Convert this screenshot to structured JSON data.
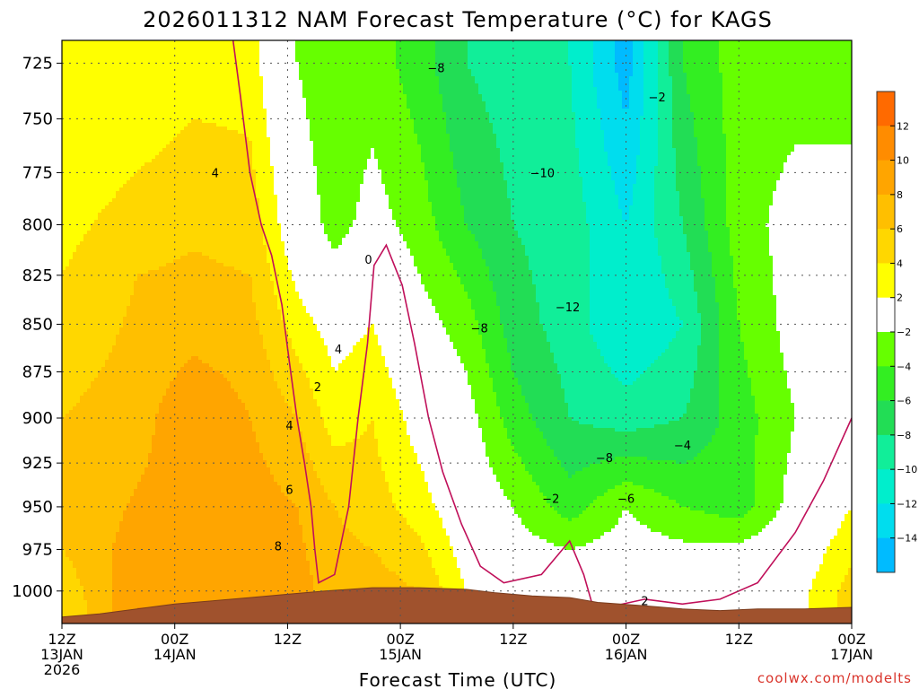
{
  "chart_data": {
    "type": "heatmap",
    "title": "2026011312 NAM Forecast Temperature (°C) for KAGS",
    "xlabel": "Forecast Time (UTC)",
    "credit": "coolwx.com/modelts",
    "y_axis": {
      "ticks": [
        725,
        750,
        775,
        800,
        825,
        850,
        875,
        900,
        925,
        950,
        975,
        1000
      ],
      "range": [
        1020,
        715
      ],
      "grid": true
    },
    "x_axis": {
      "range_hours": [
        0,
        84
      ],
      "grid": true,
      "ticks": [
        {
          "hour": 0,
          "line1": "12Z",
          "line2": "13JAN",
          "line3": "2026"
        },
        {
          "hour": 12,
          "line1": "00Z",
          "line2": "14JAN"
        },
        {
          "hour": 24,
          "line1": "12Z",
          "line2": ""
        },
        {
          "hour": 36,
          "line1": "00Z",
          "line2": "15JAN"
        },
        {
          "hour": 48,
          "line1": "12Z",
          "line2": ""
        },
        {
          "hour": 60,
          "line1": "00Z",
          "line2": "16JAN"
        },
        {
          "hour": 72,
          "line1": "12Z",
          "line2": ""
        },
        {
          "hour": 84,
          "line1": "00Z",
          "line2": "17JAN"
        }
      ]
    },
    "colorbar": {
      "ticks": [
        "12",
        "10",
        "8",
        "6",
        "4",
        "2",
        "−2",
        "−4",
        "−6",
        "−8",
        "−10",
        "−12",
        "−14"
      ],
      "bins": [
        {
          "min": 12,
          "max": 14,
          "color": "#ff6a00"
        },
        {
          "min": 10,
          "max": 12,
          "color": "#ff8c00"
        },
        {
          "min": 8,
          "max": 10,
          "color": "#ffa500"
        },
        {
          "min": 6,
          "max": 8,
          "color": "#ffbf00"
        },
        {
          "min": 4,
          "max": 6,
          "color": "#ffd700"
        },
        {
          "min": 2,
          "max": 4,
          "color": "#ffff00"
        },
        {
          "min": -2,
          "max": 2,
          "color": "#ffffff"
        },
        {
          "min": -4,
          "max": -2,
          "color": "#66ff00"
        },
        {
          "min": -6,
          "max": -4,
          "color": "#33ee22"
        },
        {
          "min": -8,
          "max": -6,
          "color": "#22dd55"
        },
        {
          "min": -10,
          "max": -8,
          "color": "#11ee99"
        },
        {
          "min": -12,
          "max": -10,
          "color": "#00eecc"
        },
        {
          "min": -14,
          "max": -12,
          "color": "#00ddee"
        },
        {
          "min": -16,
          "max": -14,
          "color": "#00bbff"
        }
      ]
    },
    "temperature_field": [
      {
        "hour": 0,
        "profile": [
          [
            1010,
            4
          ],
          [
            975,
            6
          ],
          [
            900,
            6
          ],
          [
            825,
            4
          ],
          [
            750,
            2
          ]
        ]
      },
      {
        "hour": 8,
        "profile": [
          [
            1010,
            10
          ],
          [
            975,
            9
          ],
          [
            900,
            7
          ],
          [
            825,
            6
          ],
          [
            750,
            3
          ]
        ]
      },
      {
        "hour": 14,
        "profile": [
          [
            1010,
            10
          ],
          [
            950,
            9
          ],
          [
            900,
            10
          ],
          [
            850,
            7
          ],
          [
            775,
            5
          ],
          [
            725,
            3
          ]
        ]
      },
      {
        "hour": 20,
        "profile": [
          [
            1005,
            10
          ],
          [
            950,
            9
          ],
          [
            900,
            8
          ],
          [
            825,
            6
          ],
          [
            725,
            3
          ]
        ]
      },
      {
        "hour": 25,
        "profile": [
          [
            1005,
            9
          ],
          [
            950,
            8
          ],
          [
            900,
            6
          ],
          [
            850,
            3
          ],
          [
            800,
            0
          ],
          [
            725,
            -2
          ]
        ]
      },
      {
        "hour": 29,
        "profile": [
          [
            1000,
            7
          ],
          [
            950,
            6
          ],
          [
            900,
            3
          ],
          [
            850,
            1
          ],
          [
            800,
            -3
          ],
          [
            725,
            -4
          ]
        ]
      },
      {
        "hour": 33,
        "profile": [
          [
            1000,
            7
          ],
          [
            950,
            5
          ],
          [
            900,
            4
          ],
          [
            850,
            2
          ],
          [
            800,
            -1
          ],
          [
            725,
            -3
          ]
        ]
      },
      {
        "hour": 38,
        "profile": [
          [
            1000,
            6
          ],
          [
            950,
            3
          ],
          [
            900,
            1
          ],
          [
            850,
            -1
          ],
          [
            800,
            -3
          ],
          [
            725,
            -5
          ]
        ]
      },
      {
        "hour": 43,
        "profile": [
          [
            1000,
            2
          ],
          [
            950,
            0
          ],
          [
            900,
            -1
          ],
          [
            850,
            -3
          ],
          [
            800,
            -6
          ],
          [
            725,
            -8
          ]
        ]
      },
      {
        "hour": 48,
        "profile": [
          [
            1000,
            0
          ],
          [
            950,
            -2
          ],
          [
            900,
            -5
          ],
          [
            850,
            -7
          ],
          [
            800,
            -8
          ],
          [
            725,
            -9
          ]
        ]
      },
      {
        "hour": 54,
        "profile": [
          [
            1000,
            1
          ],
          [
            950,
            -5
          ],
          [
            900,
            -8
          ],
          [
            850,
            -9
          ],
          [
            800,
            -9
          ],
          [
            725,
            -10
          ]
        ]
      },
      {
        "hour": 60,
        "profile": [
          [
            1000,
            0
          ],
          [
            950,
            -2
          ],
          [
            900,
            -9
          ],
          [
            850,
            -12
          ],
          [
            800,
            -12
          ],
          [
            725,
            -15
          ]
        ]
      },
      {
        "hour": 66,
        "profile": [
          [
            1000,
            1
          ],
          [
            950,
            -4
          ],
          [
            900,
            -8
          ],
          [
            850,
            -10
          ],
          [
            800,
            -8
          ],
          [
            725,
            -6
          ]
        ]
      },
      {
        "hour": 72,
        "profile": [
          [
            1000,
            2
          ],
          [
            950,
            -5
          ],
          [
            900,
            -5
          ],
          [
            850,
            -4
          ],
          [
            800,
            -3
          ],
          [
            725,
            -3
          ]
        ]
      },
      {
        "hour": 78,
        "profile": [
          [
            1000,
            1
          ],
          [
            950,
            -1
          ],
          [
            900,
            -2
          ],
          [
            850,
            -1
          ],
          [
            800,
            -1
          ],
          [
            725,
            -3
          ]
        ]
      },
      {
        "hour": 84,
        "profile": [
          [
            1000,
            5
          ],
          [
            950,
            2
          ],
          [
            900,
            1
          ],
          [
            850,
            0
          ],
          [
            800,
            -1
          ],
          [
            725,
            -3
          ]
        ]
      }
    ],
    "contour_labels": [
      {
        "text": "4",
        "hour": 16.3,
        "p": 775
      },
      {
        "text": "0",
        "hour": 32.6,
        "p": 817
      },
      {
        "text": "4",
        "hour": 29.4,
        "p": 863
      },
      {
        "text": "2",
        "hour": 27.2,
        "p": 883
      },
      {
        "text": "4",
        "hour": 24.2,
        "p": 904
      },
      {
        "text": "6",
        "hour": 24.2,
        "p": 940
      },
      {
        "text": "8",
        "hour": 23.0,
        "p": 973
      },
      {
        "text": "−8",
        "hour": 39.8,
        "p": 727
      },
      {
        "text": "−10",
        "hour": 51.1,
        "p": 775
      },
      {
        "text": "−8",
        "hour": 44.4,
        "p": 852
      },
      {
        "text": "−12",
        "hour": 53.8,
        "p": 841
      },
      {
        "text": "−2",
        "hour": 63.3,
        "p": 740
      },
      {
        "text": "−8",
        "hour": 57.7,
        "p": 922
      },
      {
        "text": "−2",
        "hour": 52.0,
        "p": 945
      },
      {
        "text": "−6",
        "hour": 60.0,
        "p": 945
      },
      {
        "text": "−4",
        "hour": 66.0,
        "p": 915
      },
      {
        "text": "2",
        "hour": 62.0,
        "p": 1006
      }
    ],
    "terrain": [
      [
        0,
        1016
      ],
      [
        4,
        1014
      ],
      [
        8,
        1011
      ],
      [
        12,
        1008
      ],
      [
        16,
        1006
      ],
      [
        20,
        1004
      ],
      [
        24,
        1002
      ],
      [
        28,
        1000
      ],
      [
        33,
        998
      ],
      [
        38,
        998
      ],
      [
        43,
        999
      ],
      [
        46,
        1001
      ],
      [
        50,
        1003
      ],
      [
        54,
        1004
      ],
      [
        57,
        1007
      ],
      [
        62,
        1009
      ],
      [
        66,
        1011
      ],
      [
        70,
        1012
      ],
      [
        74,
        1011
      ],
      [
        79,
        1011
      ],
      [
        84,
        1010
      ]
    ],
    "freezing_line": [
      [
        18.2,
        715
      ],
      [
        19.0,
        740
      ],
      [
        20.0,
        775
      ],
      [
        21.2,
        800
      ],
      [
        22.3,
        815
      ],
      [
        23.4,
        840
      ],
      [
        24.2,
        870
      ],
      [
        25.0,
        900
      ],
      [
        25.8,
        925
      ],
      [
        26.5,
        950
      ],
      [
        26.9,
        975
      ],
      [
        27.3,
        995
      ],
      [
        29.0,
        990
      ],
      [
        30.5,
        950
      ],
      [
        31.5,
        900
      ],
      [
        32.5,
        860
      ],
      [
        33.2,
        820
      ],
      [
        34.5,
        810
      ],
      [
        36.2,
        830
      ],
      [
        37.5,
        860
      ],
      [
        39.0,
        900
      ],
      [
        40.5,
        930
      ],
      [
        42.5,
        960
      ],
      [
        44.5,
        985
      ],
      [
        47.0,
        995
      ],
      [
        51.0,
        990
      ],
      [
        54.0,
        970
      ],
      [
        55.5,
        990
      ],
      [
        56.5,
        1010
      ],
      [
        58.0,
        1010
      ],
      [
        62.0,
        1005
      ],
      [
        66.0,
        1008
      ],
      [
        70.0,
        1005
      ],
      [
        74.0,
        995
      ],
      [
        78.0,
        965
      ],
      [
        81.0,
        935
      ],
      [
        84.0,
        900
      ]
    ]
  }
}
